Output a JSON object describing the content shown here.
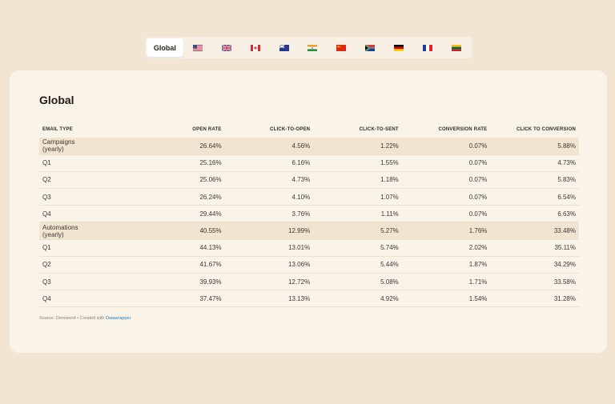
{
  "tabs": {
    "global_label": "Global",
    "flags": [
      "flag-us-icon",
      "flag-uk-icon",
      "flag-ca-icon",
      "flag-nz-icon",
      "flag-in-icon",
      "flag-cn-icon",
      "flag-za-icon",
      "flag-de-icon",
      "flag-fr-icon",
      "flag-lt-icon"
    ]
  },
  "card": {
    "title": "Global"
  },
  "table": {
    "headers": [
      "EMAIL TYPE",
      "OPEN RATE",
      "CLICK-TO-OPEN",
      "CLICK-TO-SENT",
      "CONVERSION RATE",
      "CLICK TO CONVERSION"
    ],
    "rows": [
      [
        "Campaigns (yearly)",
        "26.64%",
        "4.56%",
        "1.22%",
        "0.07%",
        "5.88%"
      ],
      [
        "Q1",
        "25.16%",
        "6.16%",
        "1.55%",
        "0.07%",
        "4.73%"
      ],
      [
        "Q2",
        "25.06%",
        "4.73%",
        "1.18%",
        "0.07%",
        "5.83%"
      ],
      [
        "Q3",
        "26.24%",
        "4.10%",
        "1.07%",
        "0.07%",
        "6.54%"
      ],
      [
        "Q4",
        "29.44%",
        "3.76%",
        "1.11%",
        "0.07%",
        "6.63%"
      ],
      [
        "Automations (yearly)",
        "40.55%",
        "12.99%",
        "5.27%",
        "1.76%",
        "33.48%"
      ],
      [
        "Q1",
        "44.13%",
        "13.01%",
        "5.74%",
        "2.02%",
        "35.11%"
      ],
      [
        "Q2",
        "41.67%",
        "13.06%",
        "5.44%",
        "1.87%",
        "34.29%"
      ],
      [
        "Q3",
        "39.93%",
        "12.72%",
        "5.08%",
        "1.71%",
        "33.58%"
      ],
      [
        "Q4",
        "37.47%",
        "13.13%",
        "4.92%",
        "1.54%",
        "31.28%"
      ]
    ]
  },
  "footer": {
    "source_text": "Source: Omnisend • Created with ",
    "link_text": "Datawrapper"
  },
  "colors": {
    "page_bg": "#f2e6d3",
    "card_bg": "#faf3e8",
    "highlight_row": "#f1e4d1",
    "link": "#2b7fb8"
  }
}
